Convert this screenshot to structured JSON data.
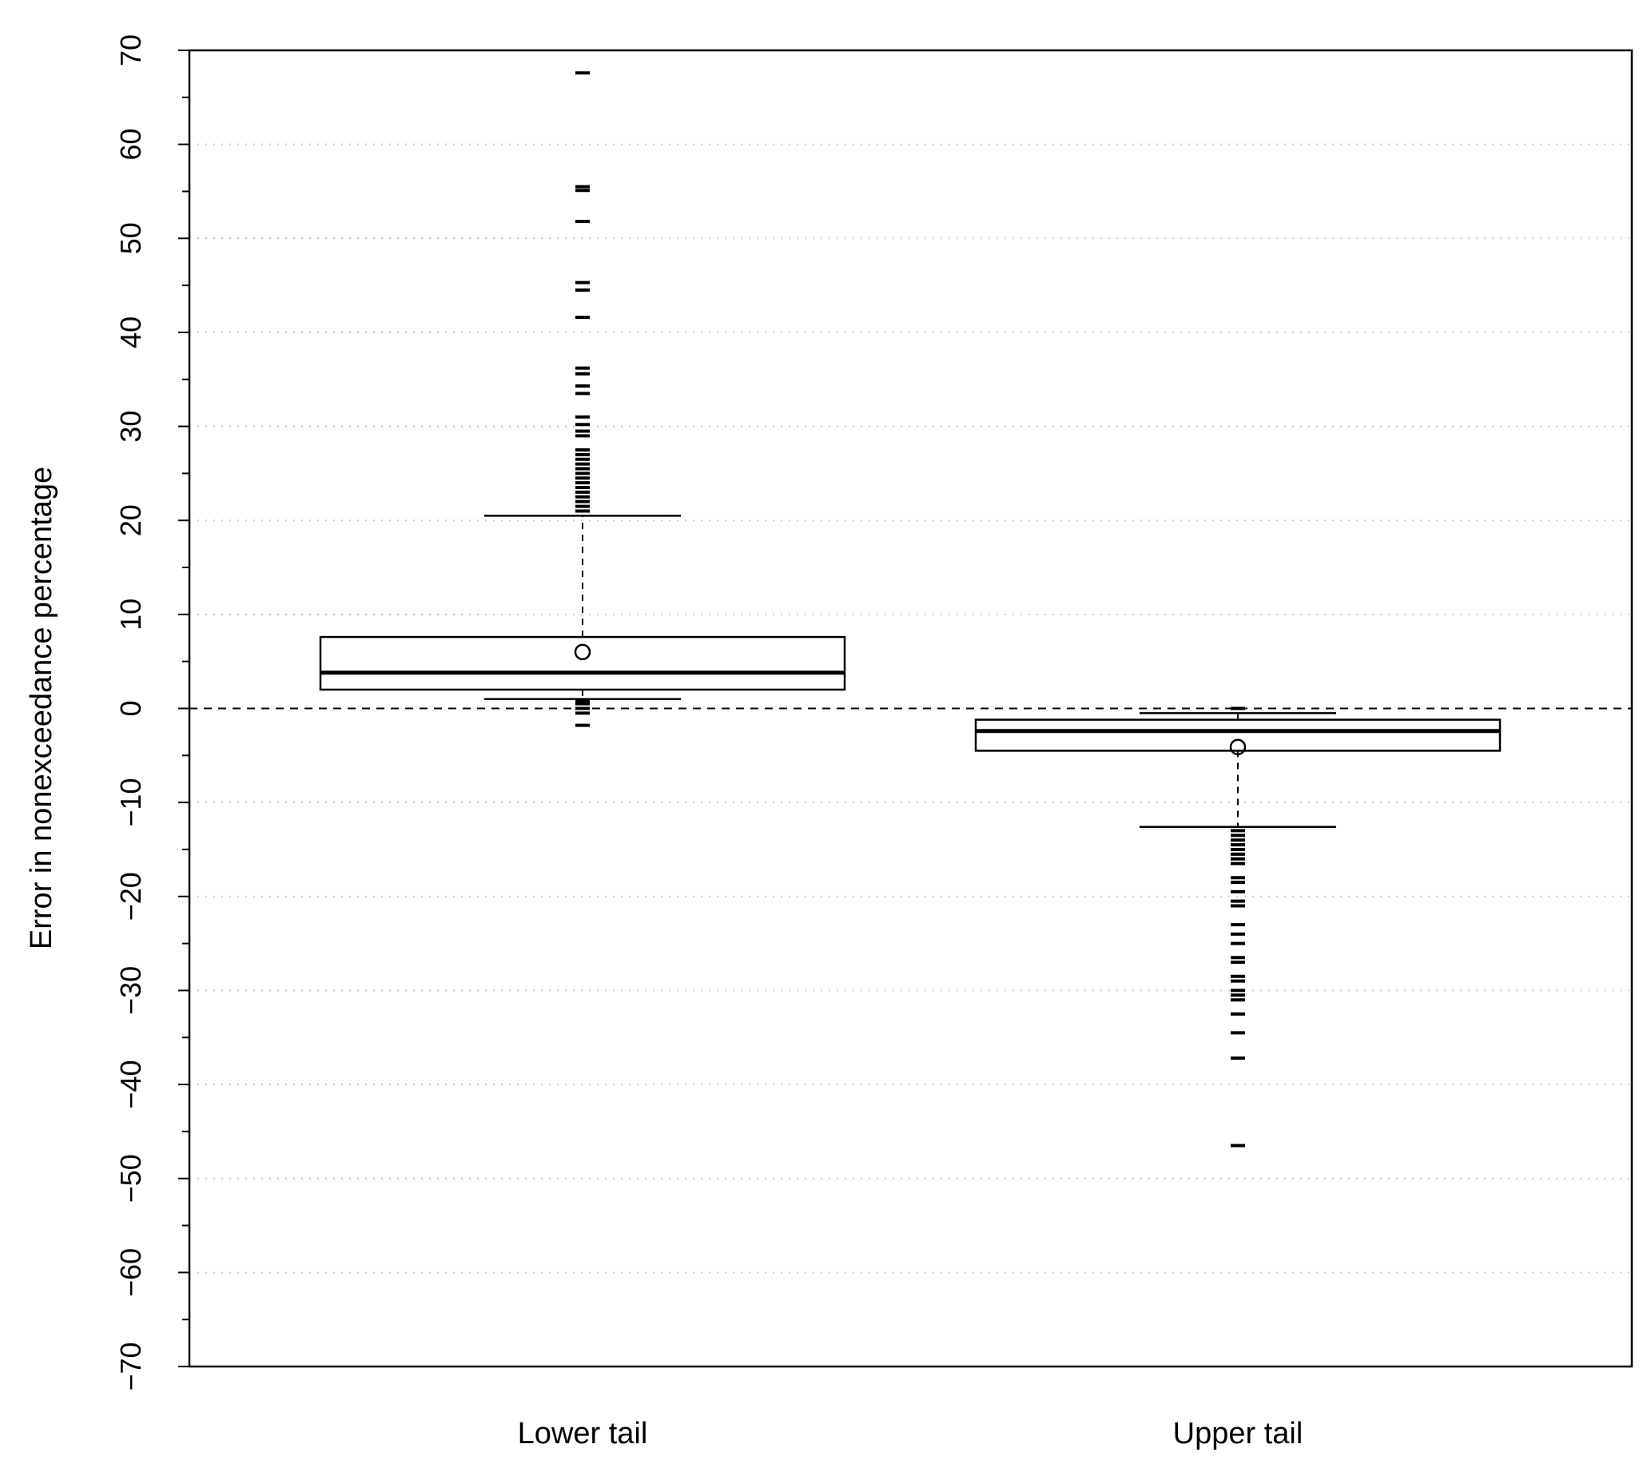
{
  "chart_data": {
    "type": "boxplot",
    "title": "",
    "xlabel": "",
    "ylabel": "Error in nonexceedance percentage",
    "ylim": [
      -70,
      70
    ],
    "yticks": [
      -70,
      -60,
      -50,
      -40,
      -30,
      -20,
      -10,
      0,
      10,
      20,
      30,
      40,
      50,
      60,
      70
    ],
    "grid": "horizontal dotted",
    "reference_line": 0,
    "colors": {
      "box": "#000000",
      "grid": "#c8c8c8"
    },
    "categories": [
      "Lower tail",
      "Upper tail"
    ],
    "boxes": [
      {
        "label": "Lower tail",
        "whisker_low": 1.0,
        "q1": 2.0,
        "median": 3.8,
        "q3": 7.6,
        "whisker_high": 20.5,
        "mean": 6.0,
        "outliers": [
          67.6,
          55.5,
          55.1,
          51.8,
          45.3,
          44.5,
          41.6,
          36.2,
          35.6,
          34.3,
          33.5,
          31.0,
          30.2,
          29.5,
          29.0,
          27.5,
          27.0,
          26.5,
          26.0,
          25.5,
          25.0,
          24.5,
          24.0,
          23.5,
          23.0,
          22.5,
          22.0,
          21.5,
          21.0,
          0.8,
          0.5,
          0.0,
          -0.5,
          -1.8
        ]
      },
      {
        "label": "Upper tail",
        "whisker_low": -12.6,
        "q1": -4.5,
        "median": -2.4,
        "q3": -1.2,
        "whisker_high": -0.5,
        "mean": -4.1,
        "outliers": [
          0.0,
          -13.0,
          -13.5,
          -14.0,
          -14.5,
          -15.0,
          -15.5,
          -16.0,
          -16.5,
          -18.0,
          -18.5,
          -19.5,
          -20.5,
          -21.0,
          -23.0,
          -24.0,
          -25.0,
          -26.5,
          -27.0,
          -28.5,
          -29.0,
          -30.0,
          -30.5,
          -31.0,
          -32.5,
          -34.5,
          -37.2,
          -46.5
        ]
      }
    ]
  }
}
